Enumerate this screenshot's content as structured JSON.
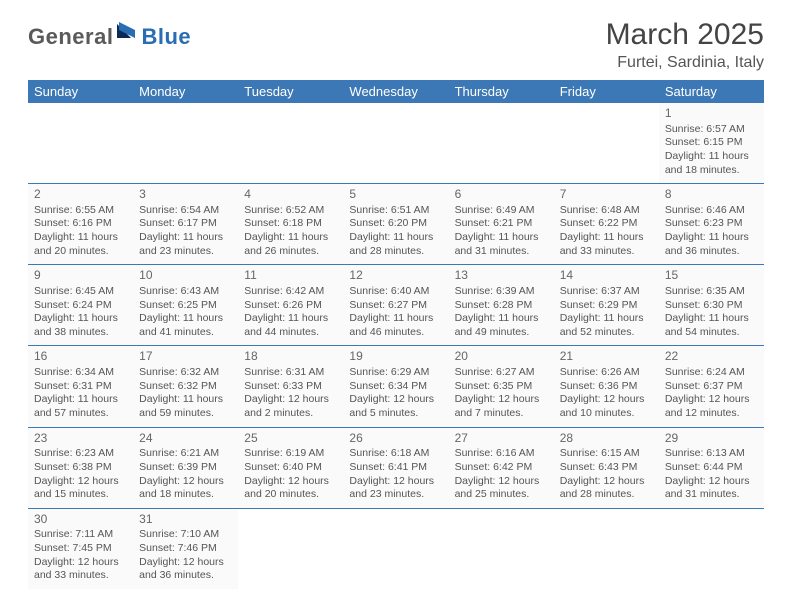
{
  "brand": {
    "name_part1": "General",
    "name_part2": "Blue",
    "color_gray": "#5a5a5a",
    "color_blue": "#2a6db3"
  },
  "title": "March 2025",
  "location": "Furtei, Sardinia, Italy",
  "styling": {
    "header_bg": "#3b78b5",
    "header_fg": "#ffffff",
    "cell_bg": "#fafafa",
    "border_color": "#3b78b5",
    "body_text_color": "#555555",
    "daynum_color": "#666666",
    "title_fontsize_pt": 30,
    "location_fontsize_pt": 16,
    "weekday_fontsize_pt": 13,
    "cell_fontsize_pt": 10.5
  },
  "weekdays": [
    "Sunday",
    "Monday",
    "Tuesday",
    "Wednesday",
    "Thursday",
    "Friday",
    "Saturday"
  ],
  "grid": [
    [
      null,
      null,
      null,
      null,
      null,
      null,
      {
        "day": "1",
        "sunrise": "Sunrise: 6:57 AM",
        "sunset": "Sunset: 6:15 PM",
        "daylight1": "Daylight: 11 hours",
        "daylight2": "and 18 minutes."
      }
    ],
    [
      {
        "day": "2",
        "sunrise": "Sunrise: 6:55 AM",
        "sunset": "Sunset: 6:16 PM",
        "daylight1": "Daylight: 11 hours",
        "daylight2": "and 20 minutes."
      },
      {
        "day": "3",
        "sunrise": "Sunrise: 6:54 AM",
        "sunset": "Sunset: 6:17 PM",
        "daylight1": "Daylight: 11 hours",
        "daylight2": "and 23 minutes."
      },
      {
        "day": "4",
        "sunrise": "Sunrise: 6:52 AM",
        "sunset": "Sunset: 6:18 PM",
        "daylight1": "Daylight: 11 hours",
        "daylight2": "and 26 minutes."
      },
      {
        "day": "5",
        "sunrise": "Sunrise: 6:51 AM",
        "sunset": "Sunset: 6:20 PM",
        "daylight1": "Daylight: 11 hours",
        "daylight2": "and 28 minutes."
      },
      {
        "day": "6",
        "sunrise": "Sunrise: 6:49 AM",
        "sunset": "Sunset: 6:21 PM",
        "daylight1": "Daylight: 11 hours",
        "daylight2": "and 31 minutes."
      },
      {
        "day": "7",
        "sunrise": "Sunrise: 6:48 AM",
        "sunset": "Sunset: 6:22 PM",
        "daylight1": "Daylight: 11 hours",
        "daylight2": "and 33 minutes."
      },
      {
        "day": "8",
        "sunrise": "Sunrise: 6:46 AM",
        "sunset": "Sunset: 6:23 PM",
        "daylight1": "Daylight: 11 hours",
        "daylight2": "and 36 minutes."
      }
    ],
    [
      {
        "day": "9",
        "sunrise": "Sunrise: 6:45 AM",
        "sunset": "Sunset: 6:24 PM",
        "daylight1": "Daylight: 11 hours",
        "daylight2": "and 38 minutes."
      },
      {
        "day": "10",
        "sunrise": "Sunrise: 6:43 AM",
        "sunset": "Sunset: 6:25 PM",
        "daylight1": "Daylight: 11 hours",
        "daylight2": "and 41 minutes."
      },
      {
        "day": "11",
        "sunrise": "Sunrise: 6:42 AM",
        "sunset": "Sunset: 6:26 PM",
        "daylight1": "Daylight: 11 hours",
        "daylight2": "and 44 minutes."
      },
      {
        "day": "12",
        "sunrise": "Sunrise: 6:40 AM",
        "sunset": "Sunset: 6:27 PM",
        "daylight1": "Daylight: 11 hours",
        "daylight2": "and 46 minutes."
      },
      {
        "day": "13",
        "sunrise": "Sunrise: 6:39 AM",
        "sunset": "Sunset: 6:28 PM",
        "daylight1": "Daylight: 11 hours",
        "daylight2": "and 49 minutes."
      },
      {
        "day": "14",
        "sunrise": "Sunrise: 6:37 AM",
        "sunset": "Sunset: 6:29 PM",
        "daylight1": "Daylight: 11 hours",
        "daylight2": "and 52 minutes."
      },
      {
        "day": "15",
        "sunrise": "Sunrise: 6:35 AM",
        "sunset": "Sunset: 6:30 PM",
        "daylight1": "Daylight: 11 hours",
        "daylight2": "and 54 minutes."
      }
    ],
    [
      {
        "day": "16",
        "sunrise": "Sunrise: 6:34 AM",
        "sunset": "Sunset: 6:31 PM",
        "daylight1": "Daylight: 11 hours",
        "daylight2": "and 57 minutes."
      },
      {
        "day": "17",
        "sunrise": "Sunrise: 6:32 AM",
        "sunset": "Sunset: 6:32 PM",
        "daylight1": "Daylight: 11 hours",
        "daylight2": "and 59 minutes."
      },
      {
        "day": "18",
        "sunrise": "Sunrise: 6:31 AM",
        "sunset": "Sunset: 6:33 PM",
        "daylight1": "Daylight: 12 hours",
        "daylight2": "and 2 minutes."
      },
      {
        "day": "19",
        "sunrise": "Sunrise: 6:29 AM",
        "sunset": "Sunset: 6:34 PM",
        "daylight1": "Daylight: 12 hours",
        "daylight2": "and 5 minutes."
      },
      {
        "day": "20",
        "sunrise": "Sunrise: 6:27 AM",
        "sunset": "Sunset: 6:35 PM",
        "daylight1": "Daylight: 12 hours",
        "daylight2": "and 7 minutes."
      },
      {
        "day": "21",
        "sunrise": "Sunrise: 6:26 AM",
        "sunset": "Sunset: 6:36 PM",
        "daylight1": "Daylight: 12 hours",
        "daylight2": "and 10 minutes."
      },
      {
        "day": "22",
        "sunrise": "Sunrise: 6:24 AM",
        "sunset": "Sunset: 6:37 PM",
        "daylight1": "Daylight: 12 hours",
        "daylight2": "and 12 minutes."
      }
    ],
    [
      {
        "day": "23",
        "sunrise": "Sunrise: 6:23 AM",
        "sunset": "Sunset: 6:38 PM",
        "daylight1": "Daylight: 12 hours",
        "daylight2": "and 15 minutes."
      },
      {
        "day": "24",
        "sunrise": "Sunrise: 6:21 AM",
        "sunset": "Sunset: 6:39 PM",
        "daylight1": "Daylight: 12 hours",
        "daylight2": "and 18 minutes."
      },
      {
        "day": "25",
        "sunrise": "Sunrise: 6:19 AM",
        "sunset": "Sunset: 6:40 PM",
        "daylight1": "Daylight: 12 hours",
        "daylight2": "and 20 minutes."
      },
      {
        "day": "26",
        "sunrise": "Sunrise: 6:18 AM",
        "sunset": "Sunset: 6:41 PM",
        "daylight1": "Daylight: 12 hours",
        "daylight2": "and 23 minutes."
      },
      {
        "day": "27",
        "sunrise": "Sunrise: 6:16 AM",
        "sunset": "Sunset: 6:42 PM",
        "daylight1": "Daylight: 12 hours",
        "daylight2": "and 25 minutes."
      },
      {
        "day": "28",
        "sunrise": "Sunrise: 6:15 AM",
        "sunset": "Sunset: 6:43 PM",
        "daylight1": "Daylight: 12 hours",
        "daylight2": "and 28 minutes."
      },
      {
        "day": "29",
        "sunrise": "Sunrise: 6:13 AM",
        "sunset": "Sunset: 6:44 PM",
        "daylight1": "Daylight: 12 hours",
        "daylight2": "and 31 minutes."
      }
    ],
    [
      {
        "day": "30",
        "sunrise": "Sunrise: 7:11 AM",
        "sunset": "Sunset: 7:45 PM",
        "daylight1": "Daylight: 12 hours",
        "daylight2": "and 33 minutes."
      },
      {
        "day": "31",
        "sunrise": "Sunrise: 7:10 AM",
        "sunset": "Sunset: 7:46 PM",
        "daylight1": "Daylight: 12 hours",
        "daylight2": "and 36 minutes."
      },
      null,
      null,
      null,
      null,
      null
    ]
  ]
}
